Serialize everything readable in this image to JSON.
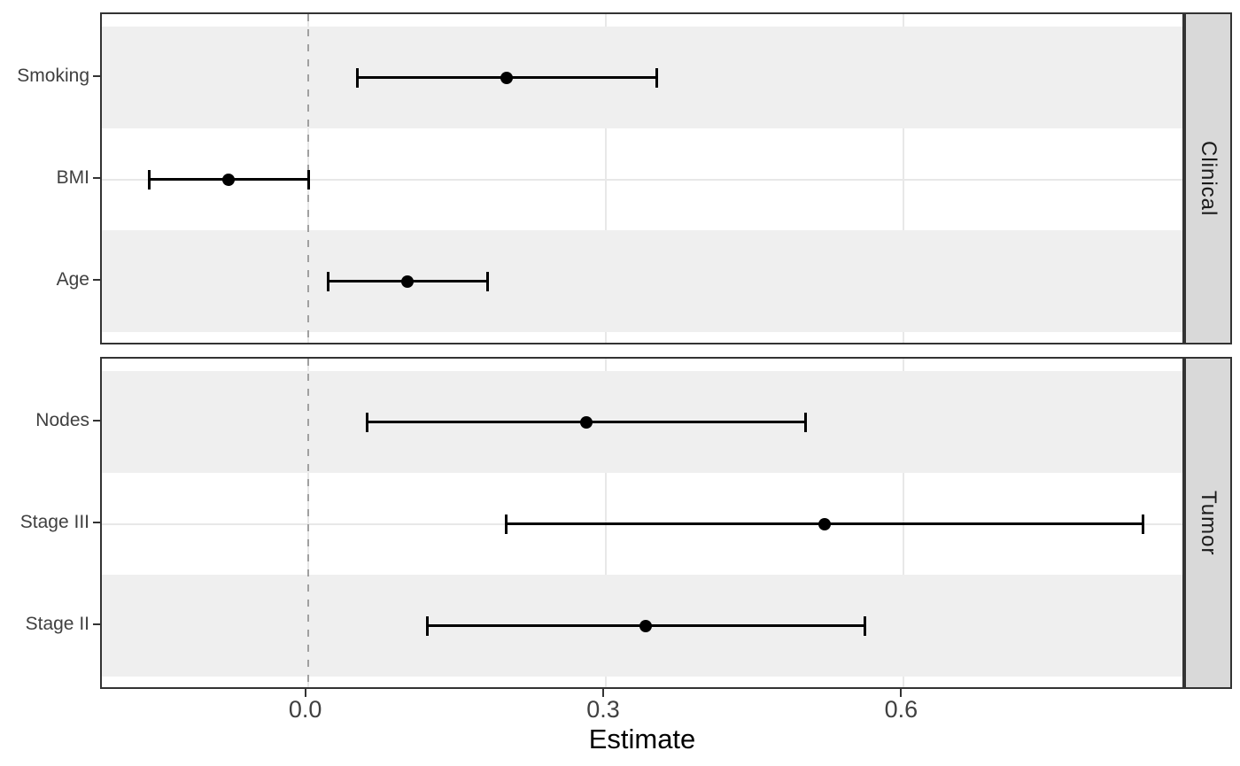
{
  "chart_data": {
    "type": "forest",
    "title": "",
    "xlabel": "Estimate",
    "x_tick_values": [
      0.0,
      0.3,
      0.6
    ],
    "x_tick_labels": [
      "0.0",
      "0.3",
      "0.6"
    ],
    "x_range": [
      -0.2092,
      0.8823
    ],
    "reference_line_x": 0,
    "legend": "none",
    "grid": "major gridlines; alternating row stripes",
    "facets": [
      {
        "label": "Clinical",
        "rows": [
          {
            "label": "Smoking",
            "estimate": 0.2,
            "ci_low": 0.05,
            "ci_high": 0.35
          },
          {
            "label": "BMI",
            "estimate": -0.08,
            "ci_low": -0.16,
            "ci_high": 0.0
          },
          {
            "label": "Age",
            "estimate": 0.1,
            "ci_low": 0.02,
            "ci_high": 0.18
          }
        ]
      },
      {
        "label": "Tumor",
        "rows": [
          {
            "label": "Nodes",
            "estimate": 0.28,
            "ci_low": 0.06,
            "ci_high": 0.5
          },
          {
            "label": "Stage III",
            "estimate": 0.52,
            "ci_low": 0.2,
            "ci_high": 0.84
          },
          {
            "label": "Stage II",
            "estimate": 0.34,
            "ci_low": 0.12,
            "ci_high": 0.56
          }
        ]
      }
    ],
    "colors": {
      "point": "#000000",
      "error_bar": "#000000",
      "reference_line": "#a0a0a0",
      "row_stripe": "#efefef",
      "gridline": "#e8e8e8",
      "panel_border": "#333333",
      "strip_background": "#d9d9d9",
      "strip_text": "#1a1a1a",
      "axis_text": "#404040",
      "axis_title_color": "#000000",
      "background": "#ffffff"
    }
  }
}
